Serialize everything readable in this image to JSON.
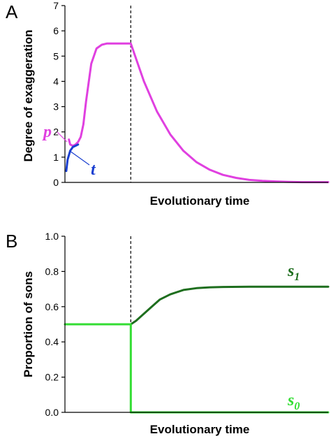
{
  "chart_data": [
    {
      "panel": "A",
      "type": "line",
      "title": "",
      "xlabel": "Evolutionary time",
      "ylabel": "Degree of exaggeration",
      "ylim": [
        0,
        7
      ],
      "yticks": [
        "0",
        "1",
        "2",
        "3",
        "4",
        "5",
        "6",
        "7"
      ],
      "xlim": [
        0,
        100
      ],
      "vline_x": 25,
      "grid": false,
      "series": [
        {
          "name": "p",
          "color": "#e040e0",
          "x": [
            1.5,
            2,
            3,
            4,
            5,
            6,
            7,
            8,
            10,
            12,
            14,
            16,
            18,
            20,
            22,
            24,
            25,
            27,
            30,
            35,
            40,
            45,
            50,
            55,
            60,
            65,
            70,
            75,
            80,
            85,
            90,
            95,
            100
          ],
          "y": [
            1.7,
            1.5,
            1.45,
            1.5,
            1.6,
            1.8,
            2.3,
            3.2,
            4.7,
            5.3,
            5.45,
            5.5,
            5.5,
            5.5,
            5.5,
            5.5,
            5.5,
            4.9,
            4.0,
            2.8,
            1.9,
            1.25,
            0.8,
            0.5,
            0.3,
            0.18,
            0.1,
            0.06,
            0.04,
            0.02,
            0.01,
            0.01,
            0.01
          ]
        },
        {
          "name": "t",
          "color": "#1a3fd0",
          "x": [
            0.5,
            1,
            2,
            3,
            4,
            5
          ],
          "y": [
            0.45,
            0.9,
            1.25,
            1.4,
            1.45,
            1.5
          ]
        }
      ]
    },
    {
      "panel": "B",
      "type": "line",
      "title": "",
      "xlabel": "Evolutionary time",
      "ylabel": "Proportion of sons",
      "ylim": [
        0,
        1.0
      ],
      "yticks": [
        "0.0",
        "0.2",
        "0.4",
        "0.6",
        "0.8",
        "1.0"
      ],
      "xlim": [
        0,
        100
      ],
      "vline_x": 25,
      "grid": false,
      "series": [
        {
          "name": "s",
          "subscript": "1",
          "color": "#1e6e1e",
          "x": [
            25,
            27,
            30,
            33,
            36,
            40,
            45,
            50,
            55,
            60,
            70,
            80,
            90,
            100
          ],
          "y": [
            0.5,
            0.52,
            0.56,
            0.6,
            0.64,
            0.67,
            0.695,
            0.705,
            0.71,
            0.712,
            0.713,
            0.713,
            0.713,
            0.713
          ]
        },
        {
          "name": "s",
          "subscript": "0",
          "color": "#33dd33",
          "x": [
            0,
            25,
            25,
            100
          ],
          "y": [
            0.5,
            0.5,
            0.0,
            0.0
          ]
        }
      ]
    }
  ]
}
